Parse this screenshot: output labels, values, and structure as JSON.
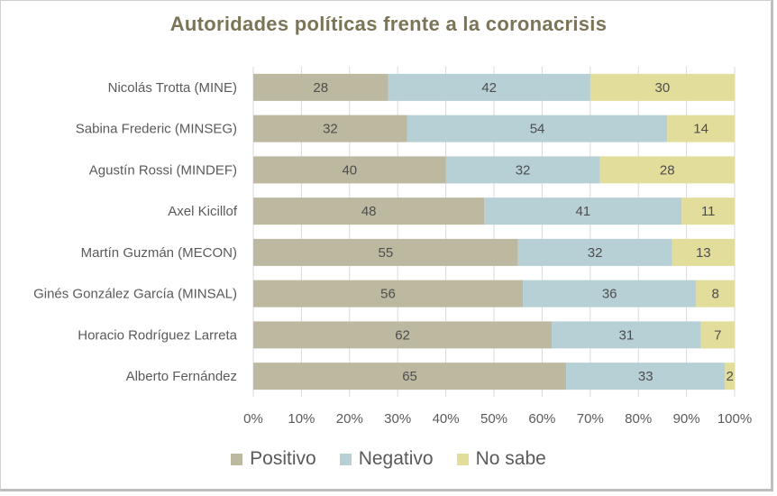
{
  "chart_data": {
    "type": "bar",
    "orientation": "horizontal",
    "stacked": true,
    "title": "Autoridades políticas frente a la coronacrisis",
    "categories": [
      "Nicolás Trotta (MINE)",
      "Sabina Frederic (MINSEG)",
      "Agustín Rossi (MINDEF)",
      "Axel Kicillof",
      "Martín Guzmán (MECON)",
      "Ginés González García (MINSAL)",
      "Horacio Rodríguez Larreta",
      "Alberto Fernández"
    ],
    "series": [
      {
        "name": "Positivo",
        "color": "#bdb9a0",
        "values": [
          28,
          32,
          40,
          48,
          55,
          56,
          62,
          65
        ]
      },
      {
        "name": "Negativo",
        "color": "#b6d0d5",
        "values": [
          42,
          54,
          32,
          41,
          32,
          36,
          31,
          33
        ]
      },
      {
        "name": "No sabe",
        "color": "#e2dd9a",
        "values": [
          30,
          14,
          28,
          11,
          13,
          8,
          7,
          2
        ]
      }
    ],
    "xlim": [
      0,
      100
    ],
    "xticks": [
      "0%",
      "10%",
      "20%",
      "30%",
      "40%",
      "50%",
      "60%",
      "70%",
      "80%",
      "90%",
      "100%"
    ],
    "grid": true,
    "legend_position": "bottom"
  }
}
